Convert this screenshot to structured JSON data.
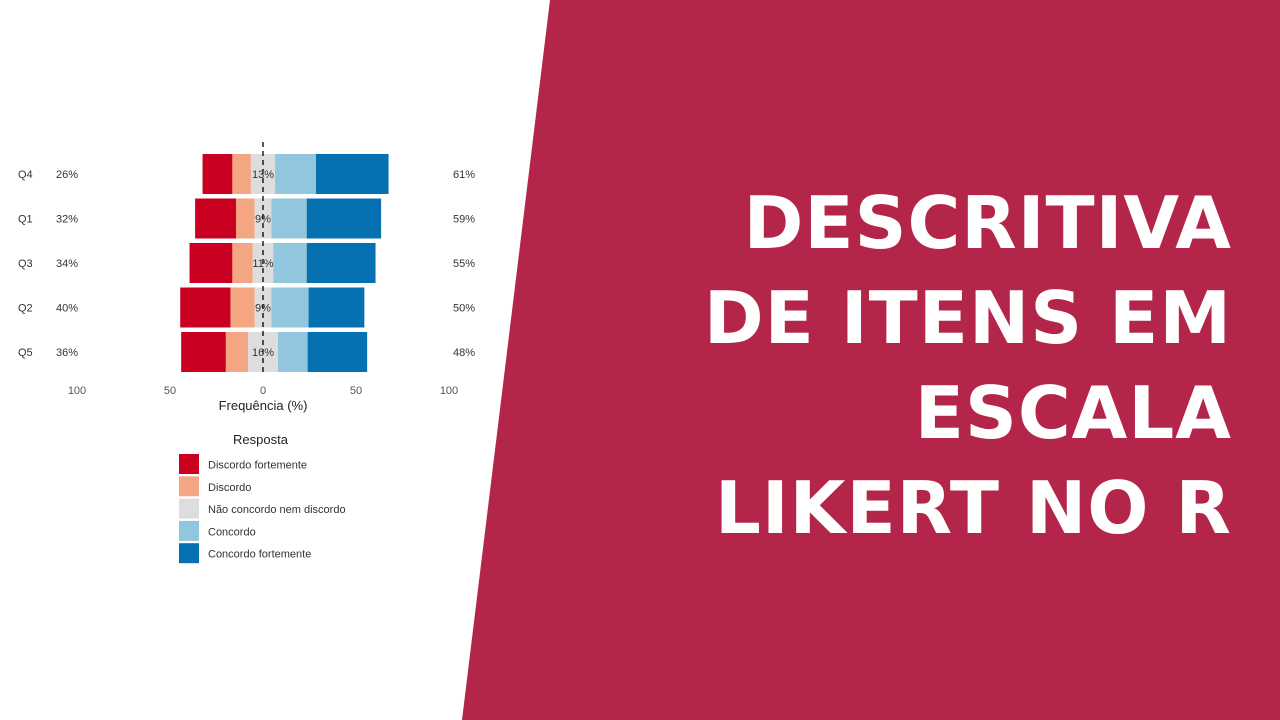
{
  "banner": {
    "color": "#B42649",
    "title_lines": [
      "DESCRITIVA",
      "DE ITENS EM",
      "ESCALA",
      "LIKERT NO R"
    ]
  },
  "chart_data": {
    "type": "bar",
    "subtype": "diverging-stacked-likert",
    "categories": [
      "Q4",
      "Q1",
      "Q3",
      "Q2",
      "Q5"
    ],
    "left_percent_labels": [
      "26%",
      "32%",
      "34%",
      "40%",
      "36%"
    ],
    "center_percent_labels": [
      "13%",
      "9%",
      "11%",
      "9%",
      "16%"
    ],
    "right_percent_labels": [
      "61%",
      "59%",
      "55%",
      "50%",
      "48%"
    ],
    "series": [
      {
        "name": "Discordo fortemente",
        "color": "#CA0020",
        "values": [
          16,
          22,
          23,
          27,
          24
        ]
      },
      {
        "name": "Discordo",
        "color": "#F4A582",
        "values": [
          10,
          10,
          11,
          13,
          12
        ]
      },
      {
        "name": "Não concordo nem discordo",
        "color": "#DDDDDD",
        "values": [
          13,
          9,
          11,
          9,
          16
        ]
      },
      {
        "name": "Concordo",
        "color": "#92C5DE",
        "values": [
          22,
          19,
          18,
          20,
          16
        ]
      },
      {
        "name": "Concordo fortemente",
        "color": "#0571B0",
        "values": [
          39,
          40,
          37,
          30,
          32
        ]
      }
    ],
    "x_ticks": [
      "100",
      "50",
      "0",
      "50",
      "100"
    ],
    "xlim": [
      -100,
      100
    ],
    "xlabel": "Frequência (%)",
    "legend_title": "Resposta",
    "legend_position": "bottom"
  }
}
